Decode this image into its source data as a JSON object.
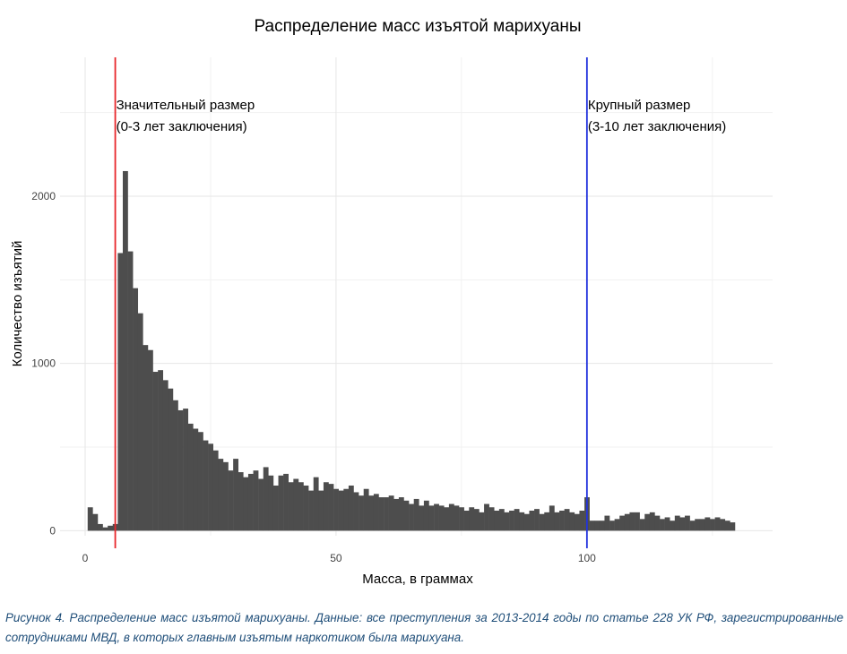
{
  "chart_data": {
    "type": "bar",
    "subtype": "histogram",
    "title": "Распределение масс изъятой марихуаны",
    "xlabel": "Масса, в граммах",
    "ylabel": "Количество изъятий",
    "xlim": [
      -5,
      137
    ],
    "ylim": [
      -30,
      2830
    ],
    "x_ticks": [
      0,
      50,
      100
    ],
    "y_ticks": [
      0,
      1000,
      2000
    ],
    "x_tick_labels": [
      "0",
      "50",
      "100"
    ],
    "y_tick_labels": [
      "0",
      "1000",
      "2000"
    ],
    "grid": true,
    "bin_start": 0.5,
    "bin_width": 1,
    "bar_color": "#4d4d4d",
    "values": [
      140,
      100,
      40,
      20,
      30,
      40,
      1660,
      2150,
      1670,
      1450,
      1300,
      1110,
      1080,
      950,
      960,
      900,
      850,
      780,
      720,
      730,
      640,
      610,
      590,
      540,
      520,
      480,
      430,
      410,
      360,
      430,
      350,
      320,
      340,
      360,
      310,
      380,
      330,
      270,
      330,
      340,
      290,
      310,
      290,
      270,
      240,
      320,
      240,
      290,
      280,
      250,
      240,
      250,
      270,
      230,
      210,
      250,
      210,
      220,
      200,
      200,
      210,
      190,
      200,
      180,
      160,
      190,
      150,
      180,
      150,
      160,
      150,
      140,
      160,
      150,
      140,
      120,
      140,
      130,
      110,
      160,
      140,
      120,
      130,
      110,
      120,
      130,
      110,
      100,
      120,
      130,
      100,
      110,
      150,
      110,
      120,
      130,
      110,
      100,
      120,
      200,
      60,
      60,
      60,
      90,
      60,
      70,
      90,
      100,
      110,
      110,
      70,
      100,
      110,
      90,
      70,
      80,
      60,
      90,
      80,
      90,
      60,
      70,
      70,
      80,
      70,
      80,
      70,
      60,
      50
    ],
    "vlines": [
      {
        "x": 6,
        "color": "#e8262a",
        "label_line1": "Значительный размер",
        "label_line2": "(0-3 лет заключения)"
      },
      {
        "x": 100,
        "color": "#2233dd",
        "label_line1": "Крупный размер",
        "label_line2": "(3-10 лет заключения)"
      }
    ]
  },
  "caption": "Рисунок 4. Распределение масс изъятой марихуаны. Данные: все преступления за 2013-2014 годы по статье 228 УК РФ, зарегистрированные сотрудниками МВД, в которых главным изъятым наркотиком была марихуана."
}
